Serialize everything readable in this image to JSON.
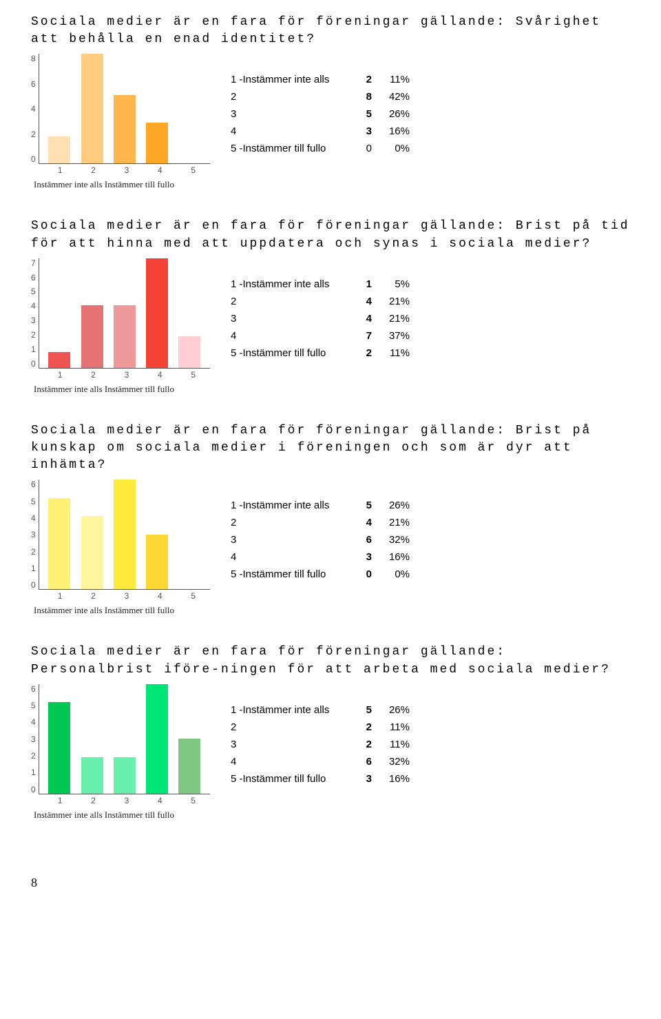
{
  "axis_legend_left": "Instämmer inte alls",
  "axis_legend_right": "Instämmer till fullo",
  "page_number": "8",
  "blocks": [
    {
      "title": "Sociala medier är en fara för föreningar gällande: Svårighet att behålla en enad identitet?",
      "ymax": 8,
      "yticks": [
        "8",
        "6",
        "4",
        "2",
        "0"
      ],
      "xticks": [
        "1",
        "2",
        "3",
        "4",
        "5"
      ],
      "values": [
        2,
        8,
        5,
        3,
        0
      ],
      "bar_colors": [
        "#ffe0b2",
        "#ffcc80",
        "#ffb74d",
        "#ffa726",
        "#ff9800"
      ],
      "rows": [
        {
          "label": "1 -Instämmer inte alls",
          "count": "2",
          "pct": "11%"
        },
        {
          "label": "2",
          "count": "8",
          "pct": "42%"
        },
        {
          "label": "3",
          "count": "5",
          "pct": "26%"
        },
        {
          "label": "4",
          "count": "3",
          "pct": "16%"
        },
        {
          "label": "5 -Instämmer till fullo",
          "count": "0",
          "pct": "0%"
        }
      ],
      "count_bold_until": 4
    },
    {
      "title": "Sociala medier är en fara för föreningar gällande: Brist på tid för att hinna med att uppdatera och synas i sociala medier?",
      "ymax": 7,
      "yticks": [
        "7",
        "6",
        "5",
        "4",
        "3",
        "2",
        "1",
        "0"
      ],
      "xticks": [
        "1",
        "2",
        "3",
        "4",
        "5"
      ],
      "values": [
        1,
        4,
        4,
        7,
        2
      ],
      "bar_colors": [
        "#ef5350",
        "#e57373",
        "#ef9a9a",
        "#f44336",
        "#ffcdd2"
      ],
      "rows": [
        {
          "label": "1 -Instämmer inte alls",
          "count": "1",
          "pct": "5%"
        },
        {
          "label": "2",
          "count": "4",
          "pct": "21%"
        },
        {
          "label": "3",
          "count": "4",
          "pct": "21%"
        },
        {
          "label": "4",
          "count": "7",
          "pct": "37%"
        },
        {
          "label": "5 -Instämmer till fullo",
          "count": "2",
          "pct": "11%"
        }
      ],
      "count_bold_until": 5
    },
    {
      "title": "Sociala medier är en fara för föreningar gällande: Brist på kunskap om sociala medier i föreningen och som är dyr att inhämta?",
      "ymax": 6,
      "yticks": [
        "6",
        "5",
        "4",
        "3",
        "2",
        "1",
        "0"
      ],
      "xticks": [
        "1",
        "2",
        "3",
        "4",
        "5"
      ],
      "values": [
        5,
        4,
        6,
        3,
        0
      ],
      "bar_colors": [
        "#fff176",
        "#fff59d",
        "#ffeb3b",
        "#fdd835",
        "#fbc02d"
      ],
      "rows": [
        {
          "label": "1 -Instämmer inte alls",
          "count": "5",
          "pct": "26%"
        },
        {
          "label": "2",
          "count": "4",
          "pct": "21%"
        },
        {
          "label": "3",
          "count": "6",
          "pct": "32%"
        },
        {
          "label": "4",
          "count": "3",
          "pct": "16%"
        },
        {
          "label": "5 -Instämmer till fullo",
          "count": "0",
          "pct": "0%"
        }
      ],
      "count_bold_until": 5
    },
    {
      "title": "Sociala medier är en fara för föreningar gällande: Personalbrist iföre-ningen för att arbeta med sociala medier?",
      "ymax": 6,
      "yticks": [
        "6",
        "5",
        "4",
        "3",
        "2",
        "1",
        "0"
      ],
      "xticks": [
        "1",
        "2",
        "3",
        "4",
        "5"
      ],
      "values": [
        5,
        2,
        2,
        6,
        3
      ],
      "bar_colors": [
        "#00c853",
        "#69f0ae",
        "#69f0ae",
        "#00e676",
        "#81c784"
      ],
      "rows": [
        {
          "label": "1 -Instämmer inte alls",
          "count": "5",
          "pct": "26%"
        },
        {
          "label": "2",
          "count": "2",
          "pct": "11%"
        },
        {
          "label": "3",
          "count": "2",
          "pct": "11%"
        },
        {
          "label": "4",
          "count": "6",
          "pct": "32%"
        },
        {
          "label": "5 -Instämmer till fullo",
          "count": "3",
          "pct": "16%"
        }
      ],
      "count_bold_until": 5
    }
  ]
}
